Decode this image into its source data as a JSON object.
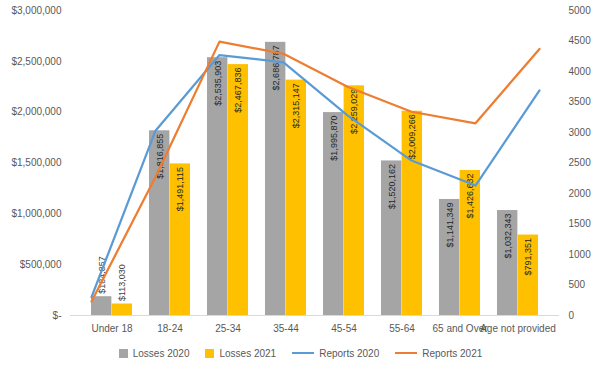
{
  "chart_data": {
    "type": "bar",
    "categories": [
      "Under 18",
      "18-24",
      "25-34",
      "35-44",
      "45-54",
      "55-64",
      "65 and Over",
      "Age not provided"
    ],
    "series": [
      {
        "name": "Losses 2020",
        "type": "bar",
        "color": "#a5a5a5",
        "values": [
          184857,
          1816855,
          2535903,
          2686787,
          1995870,
          1520162,
          1141349,
          1032343
        ],
        "value_labels": [
          "$184,857",
          "$1,816,855",
          "$2,535,903",
          "$2,686,787",
          "$1,995,870",
          "$1,520,162",
          "$1,141,349",
          "$1,032,343"
        ]
      },
      {
        "name": "Losses 2021",
        "type": "bar",
        "color": "#ffc000",
        "values": [
          113030,
          1491115,
          2467836,
          2315147,
          2259029,
          2009266,
          1426632,
          791351
        ],
        "value_labels": [
          "$113,030",
          "$1,491,115",
          "$2,467,836",
          "$2,315,147",
          "$2,259,029",
          "$2,009,266",
          "$1,426,632",
          "$791,351"
        ]
      },
      {
        "name": "Reports 2020",
        "type": "line",
        "color": "#5b9bd5",
        "axis": "y2",
        "values": [
          300,
          3030,
          4270,
          4150,
          3280,
          2540,
          2130,
          3690
        ]
      },
      {
        "name": "Reports 2021",
        "type": "line",
        "color": "#ed7d31",
        "axis": "y2",
        "values": [
          230,
          2270,
          4490,
          4290,
          3750,
          3340,
          3150,
          4370
        ]
      }
    ],
    "ylim": [
      0,
      3000000
    ],
    "yticks": [
      {
        "value": 0,
        "label": "$-"
      },
      {
        "value": 500000,
        "label": "$500,000"
      },
      {
        "value": 1000000,
        "label": "$1,000,000"
      },
      {
        "value": 1500000,
        "label": "$1,500,000"
      },
      {
        "value": 2000000,
        "label": "$2,000,000"
      },
      {
        "value": 2500000,
        "label": "$2,500,000"
      },
      {
        "value": 3000000,
        "label": "$3,000,000"
      }
    ],
    "y2lim": [
      0,
      5000
    ],
    "y2ticks": [
      0,
      500,
      1000,
      1500,
      2000,
      2500,
      3000,
      3500,
      4000,
      4500,
      5000
    ],
    "data_labels": true,
    "legend": "bottom",
    "grid": false
  }
}
